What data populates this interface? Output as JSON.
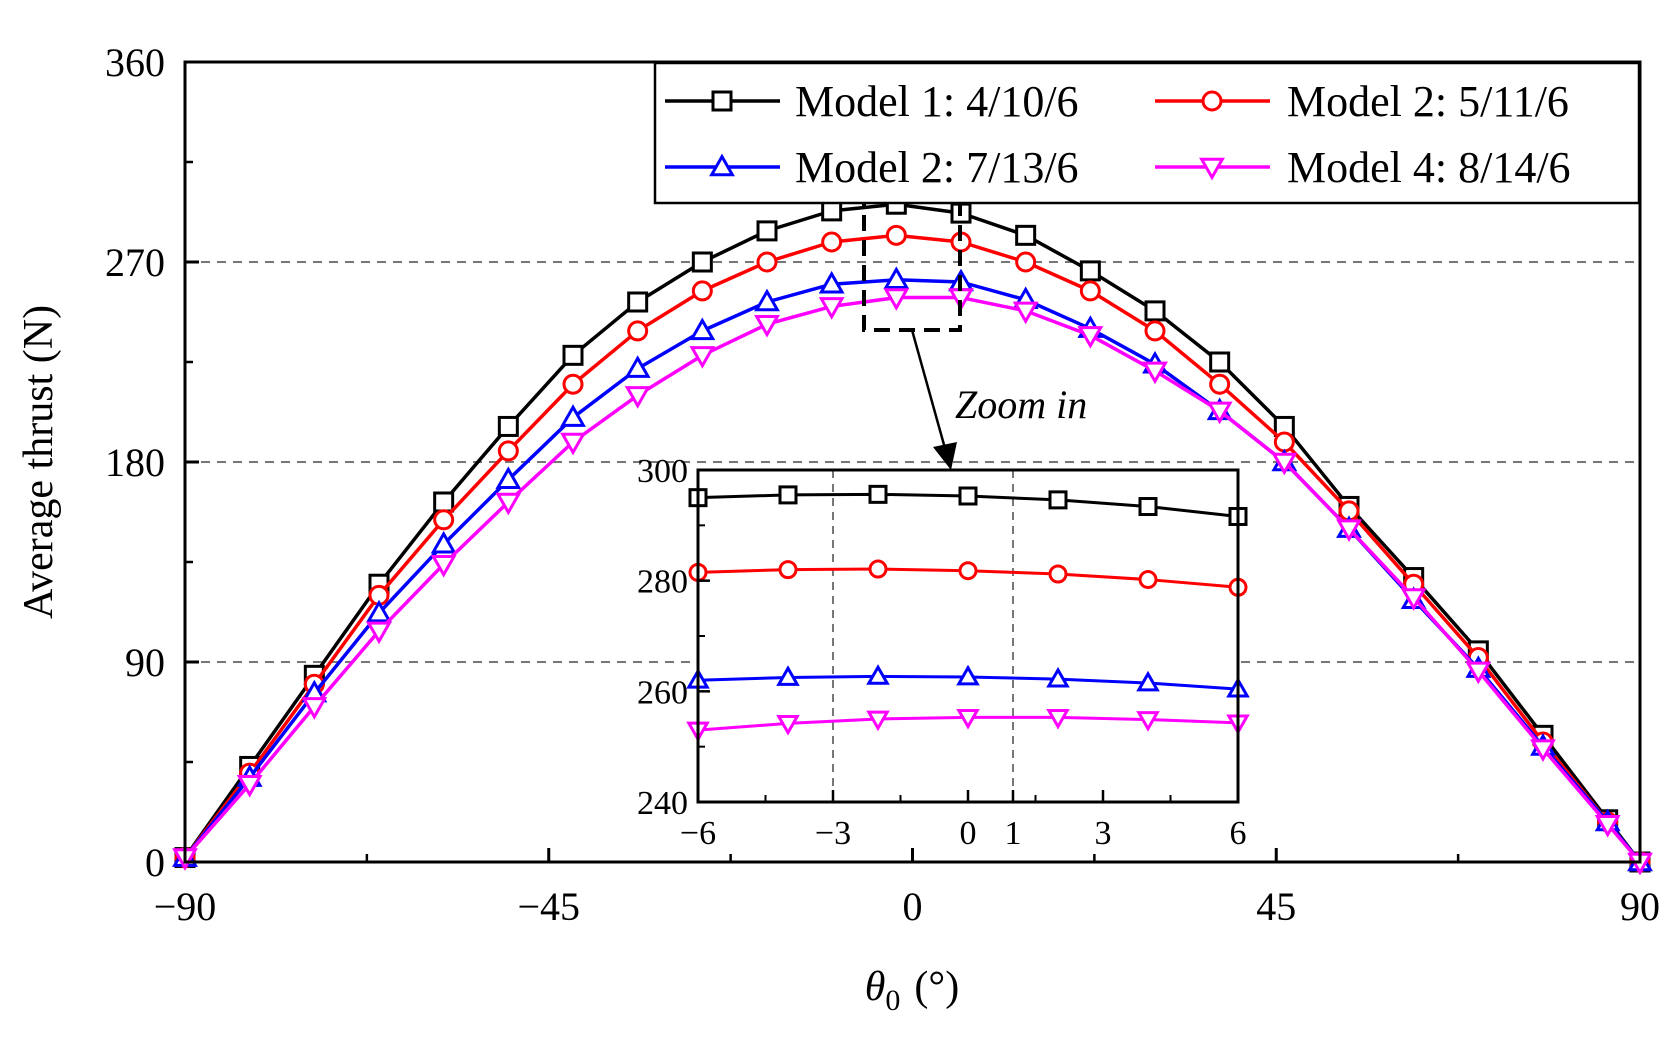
{
  "chart_data": {
    "type": "line",
    "xlabel_symbol": "θ",
    "xlabel_sub": "0",
    "xlabel_unit": "(°)",
    "ylabel": "Average thrust (N)",
    "xlim": [
      -90,
      90
    ],
    "ylim": [
      0,
      360
    ],
    "xticks": [
      -90,
      -45,
      0,
      45,
      90
    ],
    "xtick_labels": [
      "−90",
      "−45",
      "0",
      "45",
      "90"
    ],
    "yticks": [
      0,
      90,
      180,
      270,
      360
    ],
    "ytick_labels": [
      "0",
      "90",
      "180",
      "270",
      "360"
    ],
    "grid": "horizontal dashed at 90, 180, 270",
    "legend_position": "top-right",
    "annotation": "Zoom in",
    "x": [
      -90,
      -82,
      -74,
      -66,
      -58,
      -50,
      -42,
      -34,
      -26,
      -18,
      -10,
      -2,
      6,
      14,
      22,
      30,
      38,
      46,
      54,
      62,
      70,
      78,
      86,
      90
    ],
    "series": [
      {
        "name": "Model 1: 4/10/6",
        "color": "#000000",
        "marker": "square",
        "values": [
          2,
          43,
          84,
          125,
          162,
          196,
          228,
          252,
          270,
          284,
          293,
          296,
          292,
          282,
          266,
          248,
          225,
          196,
          160,
          128,
          95,
          57,
          19,
          0
        ]
      },
      {
        "name": "Model 2: 5/11/6",
        "color": "#ff0000",
        "marker": "circle",
        "values": [
          2,
          40,
          80,
          120,
          154,
          185,
          215,
          239,
          257,
          270,
          279,
          282,
          279,
          270,
          257,
          239,
          215,
          189,
          158,
          125,
          92,
          54,
          18,
          0
        ]
      },
      {
        "name": "Model 2: 7/13/6",
        "color": "#0000ff",
        "marker": "triangle-up",
        "values": [
          2,
          38,
          76,
          112,
          143,
          172,
          200,
          222,
          239,
          252,
          260,
          262,
          261,
          253,
          240,
          224,
          203,
          180,
          150,
          118,
          87,
          52,
          18,
          0
        ]
      },
      {
        "name": "Model 4: 8/14/6",
        "color": "#ff00ff",
        "marker": "triangle-down",
        "values": [
          2,
          35,
          70,
          104,
          134,
          162,
          189,
          210,
          228,
          242,
          250,
          254,
          254,
          248,
          237,
          221,
          203,
          180,
          150,
          119,
          86,
          51,
          17,
          0
        ]
      }
    ],
    "inset": {
      "xlim": [
        -6,
        6
      ],
      "ylim": [
        240,
        300
      ],
      "xticks": [
        -6,
        -3,
        0,
        1,
        3,
        6
      ],
      "xtick_labels": [
        "−6",
        "−3",
        "0",
        "1",
        "3",
        "6"
      ],
      "yticks": [
        240,
        260,
        280,
        300
      ],
      "ytick_labels": [
        "240",
        "260",
        "280",
        "300"
      ],
      "vertical_gridlines_at": [
        -3,
        1
      ],
      "x": [
        -6,
        -4,
        -2,
        0,
        2,
        4,
        6
      ],
      "series": [
        {
          "name": "Model 1: 4/10/6",
          "values": [
            295,
            295.5,
            295.6,
            295.3,
            294.6,
            293.4,
            291.6
          ]
        },
        {
          "name": "Model 2: 5/11/6",
          "values": [
            281.5,
            282.0,
            282.1,
            281.8,
            281.2,
            280.2,
            278.8
          ]
        },
        {
          "name": "Model 2: 7/13/6",
          "values": [
            262.0,
            262.5,
            262.7,
            262.6,
            262.2,
            261.5,
            260.4
          ]
        },
        {
          "name": "Model 4: 8/14/6",
          "values": [
            253.0,
            254.2,
            255.0,
            255.3,
            255.3,
            254.9,
            254.3
          ]
        }
      ]
    }
  }
}
